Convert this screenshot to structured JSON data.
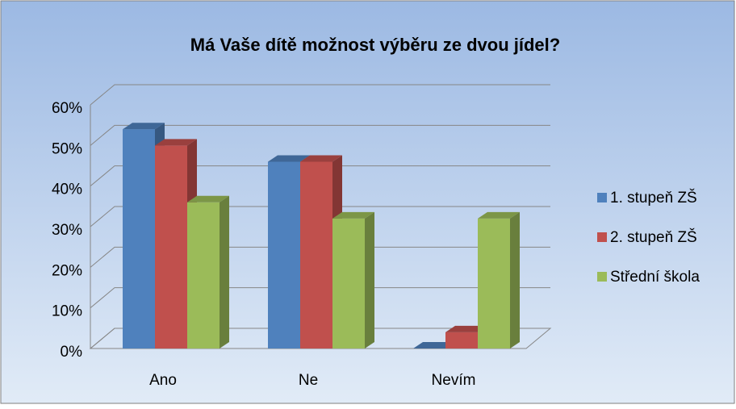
{
  "chart_data": {
    "type": "bar3d",
    "title": "Má Vaše dítě možnost výběru ze dvou jídel?",
    "categories": [
      "Ano",
      "Ne",
      "Nevím"
    ],
    "series": [
      {
        "name": "1. stupeň ZŠ",
        "color": "#4f81bd",
        "values": [
          54,
          46,
          0
        ]
      },
      {
        "name": "2. stupeň ZŠ",
        "color": "#c0504d",
        "values": [
          50,
          46,
          4
        ]
      },
      {
        "name": "Střední škola",
        "color": "#9bbb59",
        "values": [
          36,
          32,
          32
        ]
      }
    ],
    "ylim": [
      0,
      60
    ],
    "yticks": [
      {
        "value": 0,
        "label": "0%"
      },
      {
        "value": 10,
        "label": "10%"
      },
      {
        "value": 20,
        "label": "20%"
      },
      {
        "value": 30,
        "label": "30%"
      },
      {
        "value": 40,
        "label": "40%"
      },
      {
        "value": 50,
        "label": "50%"
      },
      {
        "value": 60,
        "label": "60%"
      }
    ],
    "grid": true,
    "legend": "right"
  }
}
